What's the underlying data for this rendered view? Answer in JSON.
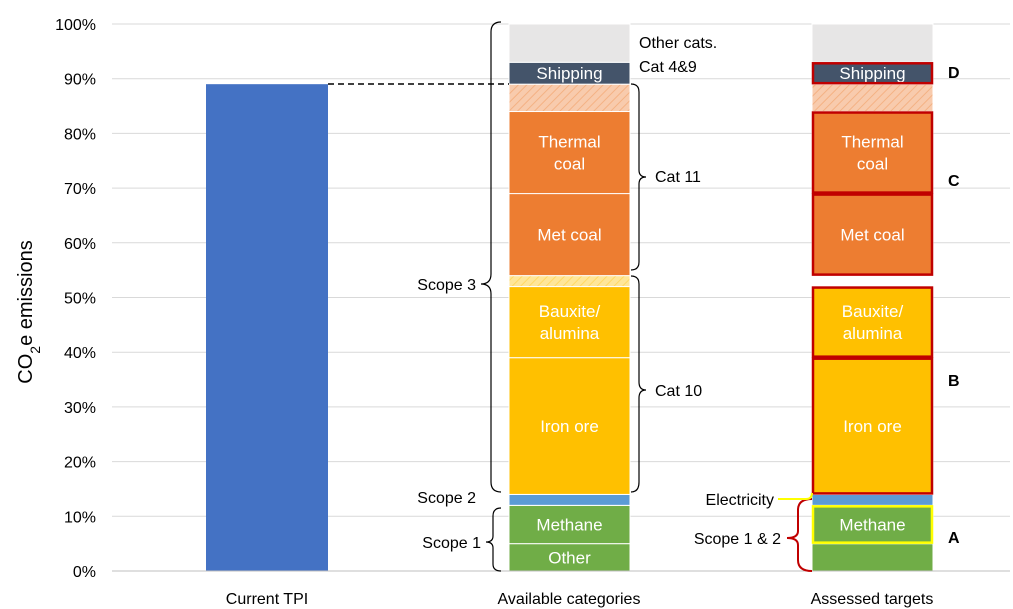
{
  "chart_data": {
    "type": "bar",
    "stacked": true,
    "ylabel": "CO₂e emissions",
    "ylim": [
      0,
      100
    ],
    "yticks": [
      "0%",
      "10%",
      "20%",
      "30%",
      "40%",
      "50%",
      "60%",
      "70%",
      "80%",
      "90%",
      "100%"
    ],
    "grid": true,
    "categories": [
      "Current TPI",
      "Available categories",
      "Assessed targets"
    ],
    "current_tpi": {
      "value": 89,
      "color": "#4472C4"
    },
    "stacks": [
      {
        "category": "Available categories",
        "segments": [
          {
            "key": "other",
            "label": "Other",
            "from": 0,
            "to": 5,
            "color": "#70AD47"
          },
          {
            "key": "methane",
            "label": "Methane",
            "from": 5,
            "to": 12,
            "color": "#70AD47"
          },
          {
            "key": "electricity",
            "label": "",
            "from": 12,
            "to": 14,
            "color": "#5B9BD5"
          },
          {
            "key": "iron-ore",
            "label": "Iron ore",
            "from": 14,
            "to": 39,
            "color": "#FFC000"
          },
          {
            "key": "bauxite",
            "label": "Bauxite/ alumina",
            "from": 39,
            "to": 52,
            "color": "#FFC000"
          },
          {
            "key": "cat10-other",
            "label": "",
            "from": 52,
            "to": 54,
            "color": "#FFE699"
          },
          {
            "key": "met-coal",
            "label": "Met coal",
            "from": 54,
            "to": 69,
            "color": "#ED7D31"
          },
          {
            "key": "thermal-coal",
            "label": "Thermal coal",
            "from": 69,
            "to": 84,
            "color": "#ED7D31"
          },
          {
            "key": "cat11-other",
            "label": "",
            "from": 84,
            "to": 89,
            "color": "#F8CBAD"
          },
          {
            "key": "shipping",
            "label": "Shipping",
            "from": 89,
            "to": 93,
            "color": "#44546A"
          },
          {
            "key": "other-cats",
            "label": "",
            "from": 93,
            "to": 100,
            "color": "#E7E6E6"
          }
        ]
      },
      {
        "category": "Assessed targets",
        "segments": [
          {
            "key": "other",
            "label": "",
            "from": 0,
            "to": 5,
            "color": "#70AD47"
          },
          {
            "key": "methane",
            "label": "Methane",
            "from": 5,
            "to": 12,
            "color": "#70AD47",
            "outline": "#FFFF00"
          },
          {
            "key": "electricity",
            "label": "",
            "from": 12,
            "to": 14,
            "color": "#5B9BD5"
          },
          {
            "key": "iron-ore",
            "label": "Iron ore",
            "from": 14,
            "to": 39,
            "color": "#FFC000",
            "outline": "#C00000"
          },
          {
            "key": "bauxite",
            "label": "Bauxite/ alumina",
            "from": 39,
            "to": 52,
            "color": "#FFC000",
            "outline": "#C00000"
          },
          {
            "key": "cat10-other",
            "label": "",
            "from": 52,
            "to": 54,
            "color": "#FFFFFF"
          },
          {
            "key": "met-coal",
            "label": "Met coal",
            "from": 54,
            "to": 69,
            "color": "#ED7D31",
            "outline": "#C00000"
          },
          {
            "key": "thermal-coal",
            "label": "Thermal coal",
            "from": 69,
            "to": 84,
            "color": "#ED7D31",
            "outline": "#C00000"
          },
          {
            "key": "cat11-other",
            "label": "",
            "from": 84,
            "to": 89,
            "color": "#F8CBAD"
          },
          {
            "key": "shipping",
            "label": "Shipping",
            "from": 89,
            "to": 93,
            "color": "#44546A",
            "outline": "#C00000"
          },
          {
            "key": "other-cats",
            "label": "",
            "from": 93,
            "to": 100,
            "color": "#E7E6E6"
          }
        ]
      }
    ],
    "annotations": {
      "other_cats": "Other cats.",
      "cat_4_9": "Cat 4&9",
      "cat_11": "Cat 11",
      "scope_3": "Scope 3",
      "cat_10": "Cat 10",
      "scope_2": "Scope 2",
      "scope_1": "Scope 1",
      "electricity": "Electricity",
      "scope_1_2": "Scope 1 & 2",
      "letters": [
        "A",
        "B",
        "C",
        "D"
      ]
    }
  }
}
